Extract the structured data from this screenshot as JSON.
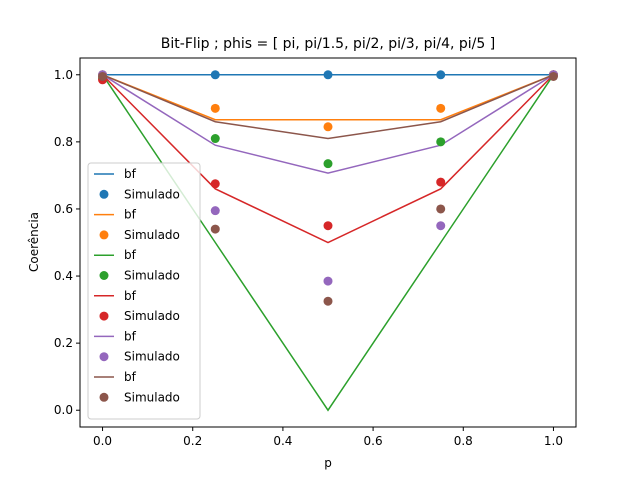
{
  "chart_data": {
    "type": "line",
    "title": "Bit-Flip ;  phis = [ pi, pi/1.5, pi/2, pi/3, pi/4, pi/5 ]",
    "xlabel": "p",
    "ylabel": "Coerência",
    "xlim": [
      -0.05,
      1.05
    ],
    "ylim": [
      -0.05,
      1.05
    ],
    "xticks": [
      0.0,
      0.2,
      0.4,
      0.6,
      0.8,
      1.0
    ],
    "xtick_labels": [
      "0.0",
      "0.2",
      "0.4",
      "0.6",
      "0.8",
      "1.0"
    ],
    "yticks": [
      0.0,
      0.2,
      0.4,
      0.6,
      0.8,
      1.0
    ],
    "ytick_labels": [
      "0.0",
      "0.2",
      "0.4",
      "0.6",
      "0.8",
      "1.0"
    ],
    "grid": false,
    "legend_placement": "center-left",
    "x": [
      0.0,
      0.25,
      0.5,
      0.75,
      1.0
    ],
    "series": [
      {
        "name": "bf",
        "kind": "line",
        "color": "#1f77b4",
        "values": [
          1.0,
          1.0,
          1.0,
          1.0,
          1.0
        ]
      },
      {
        "name": "Simulado",
        "kind": "scatter",
        "color": "#1f77b4",
        "values": [
          1.0,
          1.0,
          1.0,
          1.0,
          1.0
        ]
      },
      {
        "name": "bf",
        "kind": "line",
        "color": "#ff7f0e",
        "values": [
          1.0,
          0.866,
          0.866,
          0.866,
          1.0
        ]
      },
      {
        "name": "Simulado",
        "kind": "scatter",
        "color": "#ff7f0e",
        "values": [
          1.0,
          0.9,
          0.845,
          0.9,
          1.0
        ]
      },
      {
        "name": "bf",
        "kind": "line",
        "color": "#2ca02c",
        "values": [
          1.0,
          0.5,
          0.0,
          0.5,
          1.0
        ]
      },
      {
        "name": "Simulado",
        "kind": "scatter",
        "color": "#2ca02c",
        "values": [
          0.99,
          0.81,
          0.735,
          0.8,
          1.0
        ]
      },
      {
        "name": "bf",
        "kind": "line",
        "color": "#d62728",
        "values": [
          1.0,
          0.66,
          0.5,
          0.66,
          1.0
        ]
      },
      {
        "name": "Simulado",
        "kind": "scatter",
        "color": "#d62728",
        "values": [
          0.985,
          0.675,
          0.55,
          0.68,
          1.0
        ]
      },
      {
        "name": "bf",
        "kind": "line",
        "color": "#9467bd",
        "values": [
          1.0,
          0.79,
          0.707,
          0.79,
          1.0
        ]
      },
      {
        "name": "Simulado",
        "kind": "scatter",
        "color": "#9467bd",
        "values": [
          1.0,
          0.595,
          0.385,
          0.55,
          1.0
        ]
      },
      {
        "name": "bf",
        "kind": "line",
        "color": "#8c564b",
        "values": [
          1.0,
          0.86,
          0.81,
          0.86,
          1.0
        ]
      },
      {
        "name": "Simulado",
        "kind": "scatter",
        "color": "#8c564b",
        "values": [
          0.995,
          0.54,
          0.325,
          0.6,
          0.995
        ]
      }
    ]
  }
}
